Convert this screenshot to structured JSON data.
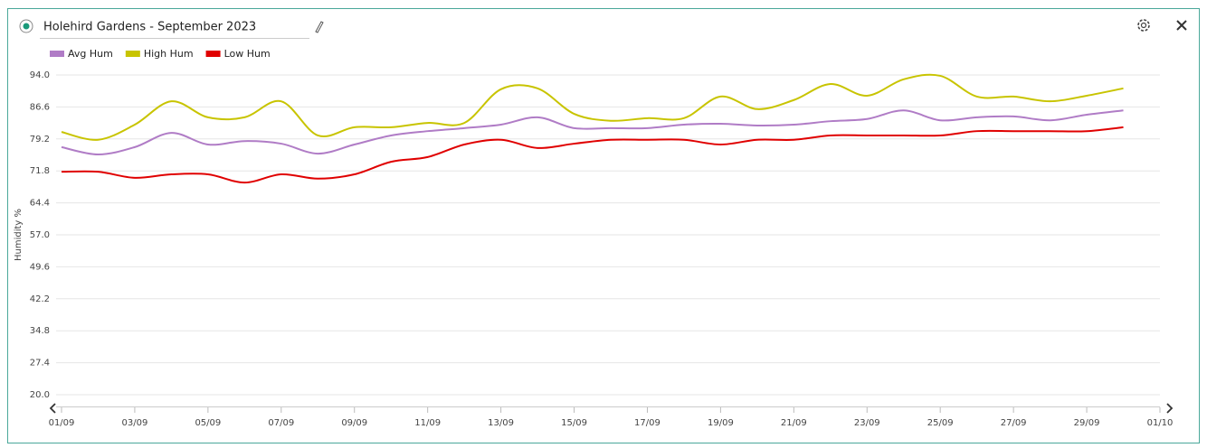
{
  "chart_data": {
    "type": "line",
    "title": "Holehird Gardens - September 2023",
    "y_label": "Humidity %",
    "categories": [
      "01/09",
      null,
      "03/09",
      null,
      "05/09",
      null,
      "07/09",
      null,
      "09/09",
      null,
      "11/09",
      null,
      "13/09",
      null,
      "15/09",
      null,
      "17/09",
      null,
      "19/09",
      null,
      "21/09",
      null,
      "23/09",
      null,
      "25/09",
      null,
      "27/09",
      null,
      "29/09",
      null,
      "01/10"
    ],
    "series": [
      {
        "name": "Avg Hum",
        "color": "#b07cc6",
        "values": [
          77.3,
          75.6,
          77.3,
          80.6,
          77.9,
          78.7,
          78.1,
          75.8,
          77.9,
          80.0,
          81.0,
          81.7,
          82.5,
          84.2,
          81.7,
          81.7,
          81.7,
          82.5,
          82.7,
          82.3,
          82.5,
          83.3,
          83.8,
          85.8,
          83.5,
          84.2,
          84.4,
          83.5,
          84.8,
          85.8,
          null
        ]
      },
      {
        "name": "High Hum",
        "color": "#c8c400",
        "values": [
          80.8,
          79.0,
          82.5,
          87.9,
          84.2,
          84.2,
          87.9,
          80.0,
          81.9,
          81.9,
          82.9,
          82.9,
          90.7,
          90.9,
          85.0,
          83.4,
          84.0,
          84.0,
          89.0,
          86.1,
          88.2,
          91.9,
          89.2,
          93.0,
          93.8,
          89.0,
          89.0,
          87.9,
          89.2,
          90.9,
          null
        ]
      },
      {
        "name": "Low Hum",
        "color": "#e00000",
        "values": [
          71.6,
          71.6,
          70.2,
          71.0,
          71.0,
          69.1,
          71.0,
          70.0,
          71.0,
          73.9,
          75.0,
          77.9,
          79.0,
          77.1,
          78.1,
          79.0,
          79.0,
          79.0,
          77.9,
          79.0,
          79.0,
          80.0,
          80.0,
          80.0,
          80.0,
          81.0,
          81.0,
          81.0,
          81.0,
          81.9,
          null
        ]
      }
    ],
    "ylim": [
      20,
      94
    ],
    "yticks": [
      {
        "value": 20,
        "label": "20.0"
      },
      {
        "value": 27.4,
        "label": "27.4"
      },
      {
        "value": 34.8,
        "label": "34.8"
      },
      {
        "value": 42.2,
        "label": "42.2"
      },
      {
        "value": 49.6,
        "label": "49.6"
      },
      {
        "value": 57,
        "label": "57.0"
      },
      {
        "value": 64.4,
        "label": "64.4"
      },
      {
        "value": 71.8,
        "label": "71.8"
      },
      {
        "value": 79.2,
        "label": "79.2"
      },
      {
        "value": 86.6,
        "label": "86.6"
      },
      {
        "value": 94,
        "label": "94.0"
      }
    ],
    "grid": true,
    "legend": "top-left"
  }
}
